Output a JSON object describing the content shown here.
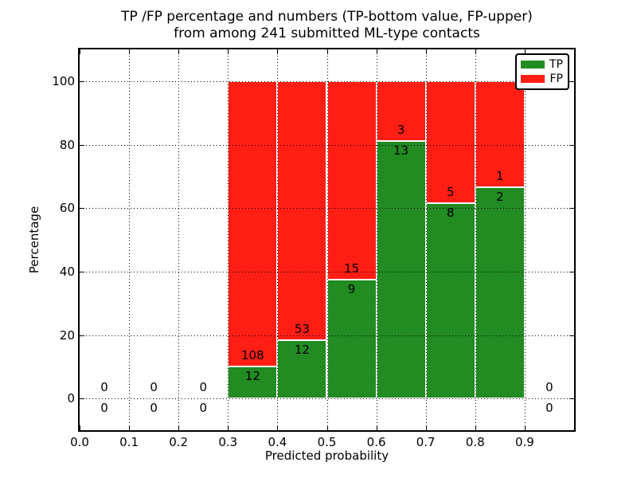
{
  "chart_data": {
    "type": "bar",
    "stacked": true,
    "title": "TP /FP percentage and numbers (TP-bottom value, FP-upper) from among 241 submitted ML-type contacts",
    "title_lines": [
      "TP /FP percentage and numbers (TP-bottom value, FP-upper)",
      "from among 241 submitted ML-type contacts"
    ],
    "xlabel": "Predicted probability",
    "ylabel": "Percentage",
    "xlim": [
      0.0,
      1.0
    ],
    "ylim": [
      -10,
      110
    ],
    "x_tick_values": [
      0.0,
      0.1,
      0.2,
      0.3,
      0.4,
      0.5,
      0.6,
      0.7,
      0.8,
      0.9
    ],
    "x_tick_labels": [
      "0.0",
      "0.1",
      "0.2",
      "0.3",
      "0.4",
      "0.5",
      "0.6",
      "0.7",
      "0.8",
      "0.9"
    ],
    "y_tick_values": [
      0,
      20,
      40,
      60,
      80,
      100
    ],
    "y_tick_labels": [
      "0",
      "20",
      "40",
      "60",
      "80",
      "100"
    ],
    "grid": "dotted",
    "legend_position": "upper right",
    "total_contacts": 241,
    "series": [
      {
        "name": "TP",
        "color": "#228B22"
      },
      {
        "name": "FP",
        "color": "#FF1E14"
      }
    ],
    "bins": [
      {
        "x_start": 0.0,
        "x_end": 0.1,
        "tp": 0,
        "fp": 0
      },
      {
        "x_start": 0.1,
        "x_end": 0.2,
        "tp": 0,
        "fp": 0
      },
      {
        "x_start": 0.2,
        "x_end": 0.3,
        "tp": 0,
        "fp": 0
      },
      {
        "x_start": 0.3,
        "x_end": 0.4,
        "tp": 12,
        "fp": 108
      },
      {
        "x_start": 0.4,
        "x_end": 0.5,
        "tp": 12,
        "fp": 53
      },
      {
        "x_start": 0.5,
        "x_end": 0.6,
        "tp": 9,
        "fp": 15
      },
      {
        "x_start": 0.6,
        "x_end": 0.7,
        "tp": 13,
        "fp": 3
      },
      {
        "x_start": 0.7,
        "x_end": 0.8,
        "tp": 8,
        "fp": 5
      },
      {
        "x_start": 0.8,
        "x_end": 0.9,
        "tp": 2,
        "fp": 1
      },
      {
        "x_start": 0.9,
        "x_end": 1.0,
        "tp": 0,
        "fp": 0
      }
    ]
  }
}
